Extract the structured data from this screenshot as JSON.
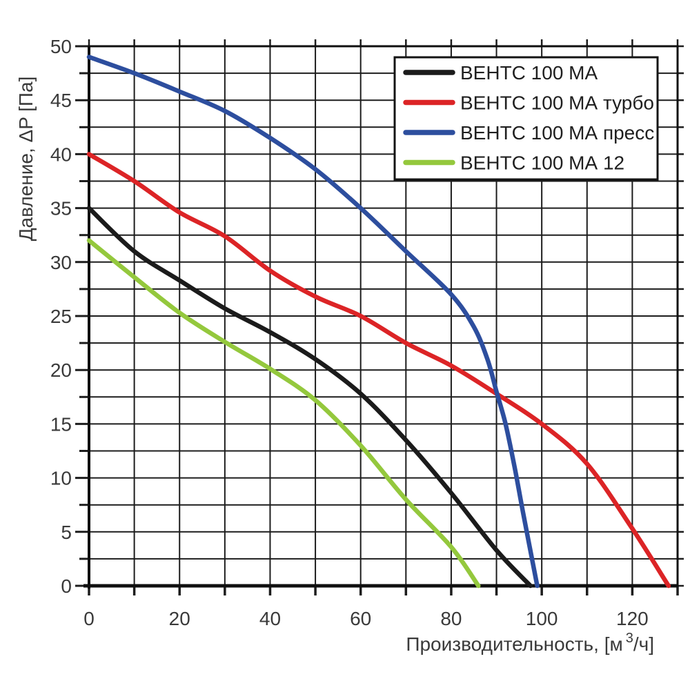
{
  "colors": {
    "background": "#ffffff",
    "grid": "#1c1c1c",
    "axis": "#0f0f0f",
    "tick_label": "#3a3a3a",
    "axis_title": "#3a3a3a",
    "legend_border": "#141414",
    "legend_background": "#ffffff",
    "legend_label": "#1f1f1f"
  },
  "chart_data": {
    "type": "line",
    "title": "",
    "xlabel": "Производительность, [м³/ч]",
    "xlabel_parts": {
      "main": "Производительность, [м",
      "sup": "3",
      "end": "/ч]"
    },
    "ylabel": "Давление, ΔP [Па]",
    "xlim": [
      0,
      130
    ],
    "ylim": [
      0,
      50
    ],
    "x_gridline_step": 10,
    "y_gridline_step": 2.5,
    "x_tick_labels": [
      0,
      20,
      40,
      60,
      80,
      100,
      120
    ],
    "y_tick_labels": [
      0,
      5,
      10,
      15,
      20,
      25,
      30,
      35,
      40,
      45,
      50
    ],
    "grid": "on",
    "legend_position": "top-right",
    "series": [
      {
        "name": "ВЕНТС 100 МА",
        "color": "#1b1b1b",
        "points": [
          [
            0,
            35
          ],
          [
            10,
            31
          ],
          [
            20,
            28.3
          ],
          [
            30,
            25.7
          ],
          [
            40,
            23.5
          ],
          [
            50,
            21
          ],
          [
            60,
            17.8
          ],
          [
            70,
            13.5
          ],
          [
            80,
            8.6
          ],
          [
            90,
            3.3
          ],
          [
            97.5,
            0
          ]
        ]
      },
      {
        "name": "ВЕНТС 100 МА турбо",
        "color": "#dc2426",
        "points": [
          [
            0,
            40
          ],
          [
            10,
            37.5
          ],
          [
            20,
            34.6
          ],
          [
            30,
            32.4
          ],
          [
            40,
            29.2
          ],
          [
            50,
            26.8
          ],
          [
            60,
            25
          ],
          [
            70,
            22.5
          ],
          [
            80,
            20.4
          ],
          [
            90,
            17.8
          ],
          [
            100,
            15
          ],
          [
            110,
            11.3
          ],
          [
            120,
            5.3
          ],
          [
            128,
            0
          ]
        ]
      },
      {
        "name": "ВЕНТС 100 МА пресс",
        "color": "#2d4e9e",
        "points": [
          [
            0,
            49
          ],
          [
            10,
            47.5
          ],
          [
            20,
            45.8
          ],
          [
            30,
            44
          ],
          [
            40,
            41.5
          ],
          [
            50,
            38.6
          ],
          [
            60,
            35
          ],
          [
            70,
            31
          ],
          [
            80,
            27
          ],
          [
            85,
            24
          ],
          [
            88,
            21
          ],
          [
            90,
            18
          ],
          [
            92,
            15
          ],
          [
            94,
            11
          ],
          [
            96,
            6.5
          ],
          [
            99,
            0
          ]
        ]
      },
      {
        "name": "ВЕНТС 100 МА 12",
        "color": "#94c83d",
        "points": [
          [
            0,
            32
          ],
          [
            10,
            28.6
          ],
          [
            20,
            25.3
          ],
          [
            30,
            22.6
          ],
          [
            40,
            20.1
          ],
          [
            50,
            17.2
          ],
          [
            60,
            13
          ],
          [
            70,
            8
          ],
          [
            80,
            3.6
          ],
          [
            86,
            0
          ]
        ]
      }
    ]
  }
}
